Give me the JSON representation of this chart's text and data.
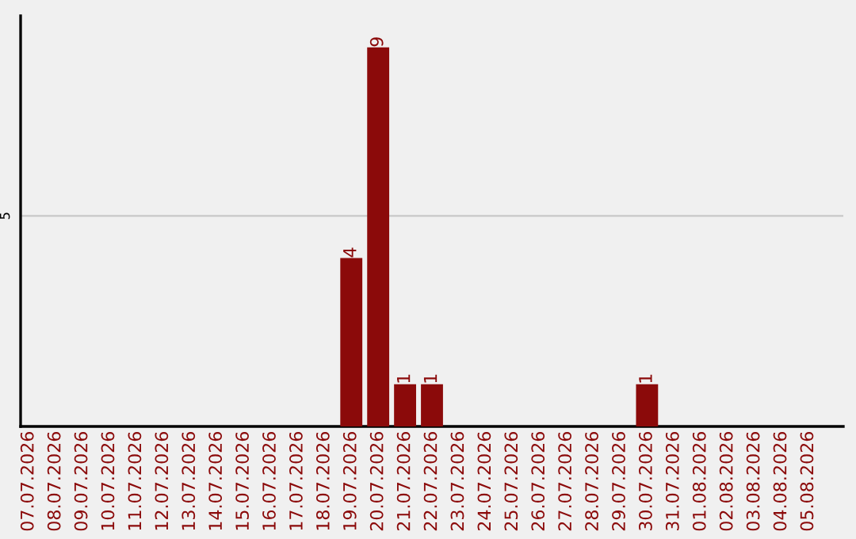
{
  "chart_data": {
    "type": "bar",
    "categories": [
      "07.07.2026",
      "08.07.2026",
      "09.07.2026",
      "10.07.2026",
      "11.07.2026",
      "12.07.2026",
      "13.07.2026",
      "14.07.2026",
      "15.07.2026",
      "16.07.2026",
      "17.07.2026",
      "18.07.2026",
      "19.07.2026",
      "20.07.2026",
      "21.07.2026",
      "22.07.2026",
      "23.07.2026",
      "24.07.2026",
      "25.07.2026",
      "26.07.2026",
      "27.07.2026",
      "28.07.2026",
      "29.07.2026",
      "30.07.2026",
      "31.07.2026",
      "01.08.2026",
      "02.08.2026",
      "03.08.2026",
      "04.08.2026",
      "05.08.2026"
    ],
    "values": [
      null,
      null,
      null,
      null,
      null,
      null,
      null,
      null,
      null,
      null,
      null,
      null,
      4,
      9,
      1,
      1,
      null,
      null,
      null,
      null,
      null,
      null,
      null,
      1,
      null,
      null,
      null,
      null,
      null,
      null
    ],
    "data_labels": true,
    "color": "#8b0a0a",
    "ref_lines": [
      {
        "axis": "y",
        "value": 5,
        "label": "5",
        "color": "#c8c8c8"
      }
    ]
  }
}
